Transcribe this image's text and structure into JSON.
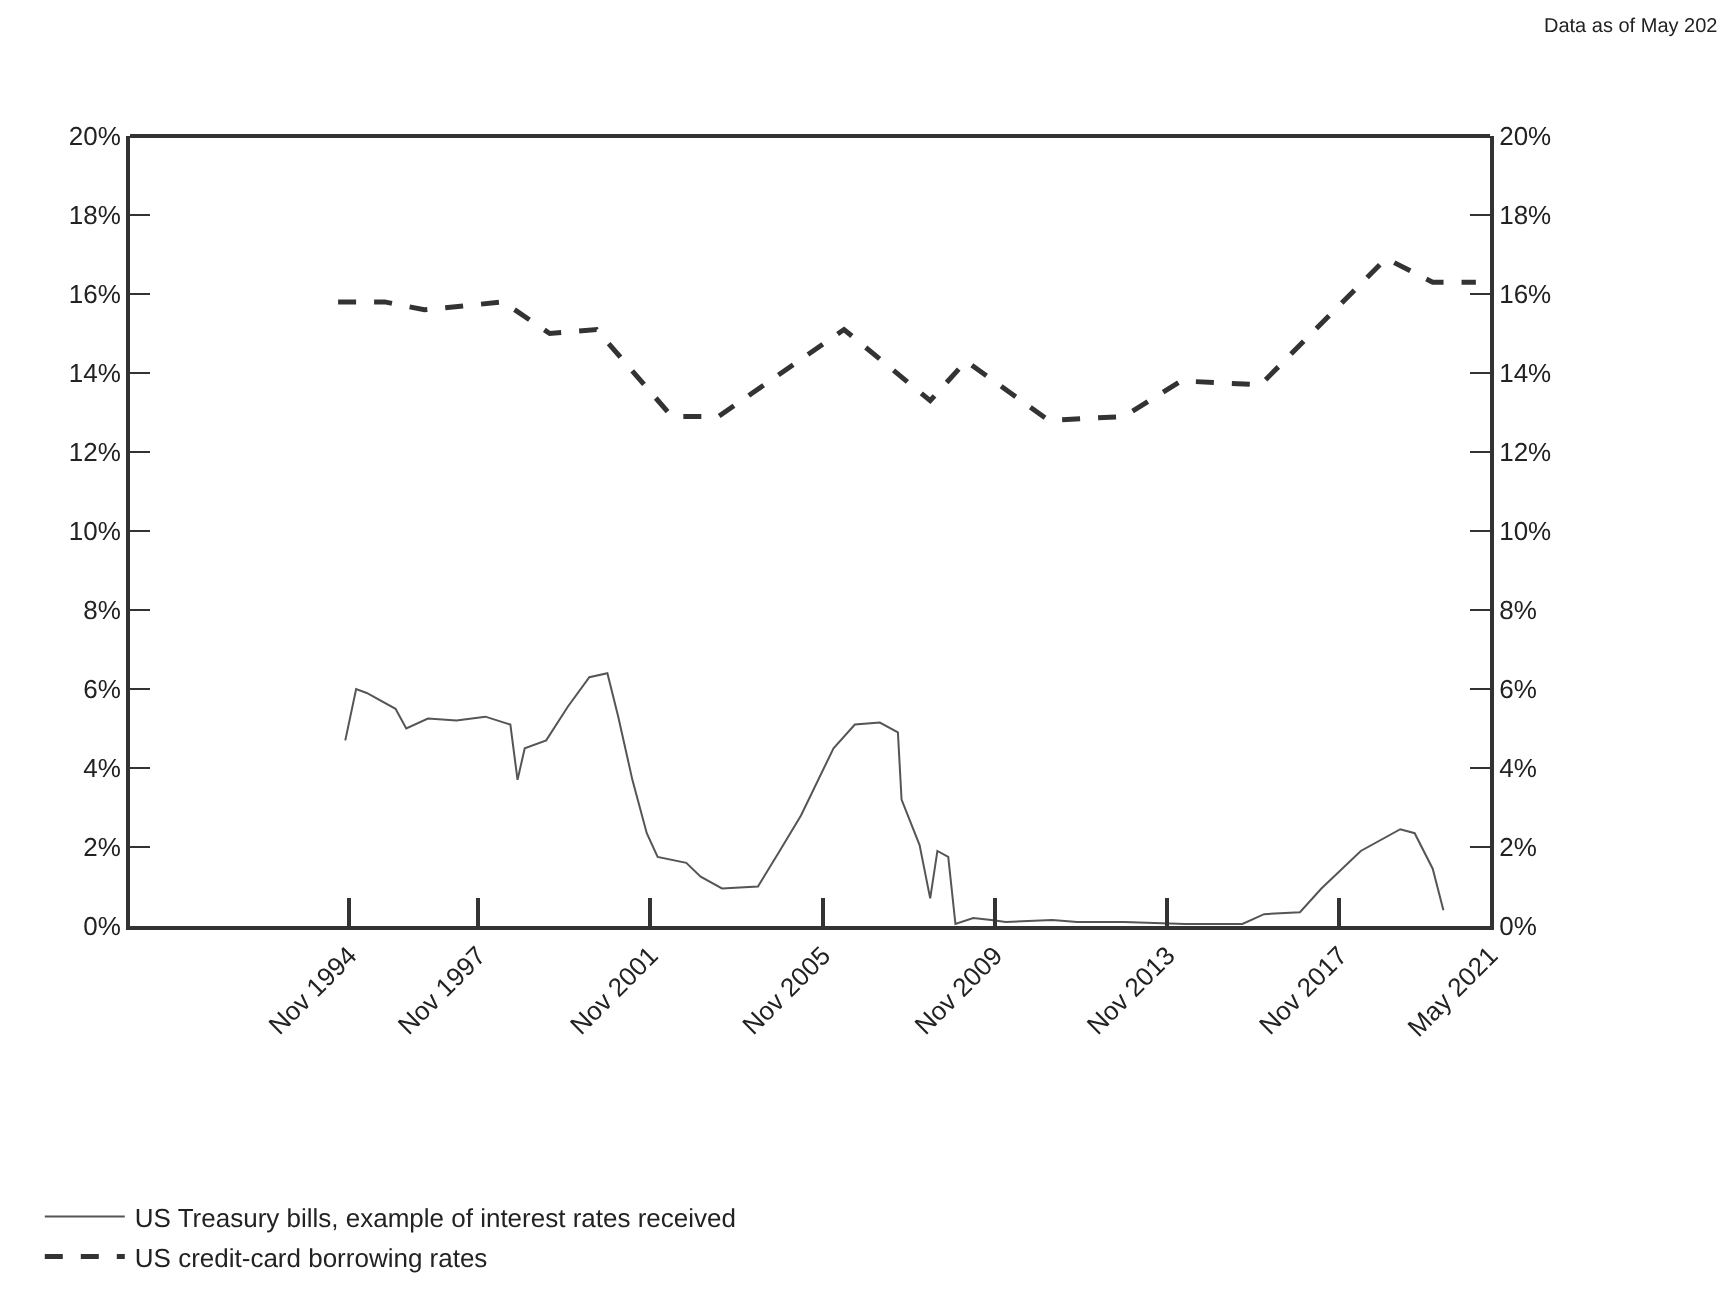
{
  "chart_data": {
    "type": "line",
    "annotations": [
      "Data as of May 202"
    ],
    "xlim": [
      "1989-10",
      "2021-05"
    ],
    "xticks": [
      {
        "value": "1994-11",
        "label": "Nov 1994"
      },
      {
        "value": "1997-11",
        "label": "Nov 1997"
      },
      {
        "value": "2001-11",
        "label": "Nov 2001"
      },
      {
        "value": "2005-11",
        "label": "Nov 2005"
      },
      {
        "value": "2009-11",
        "label": "Nov 2009"
      },
      {
        "value": "2013-11",
        "label": "Nov 2013"
      },
      {
        "value": "2017-11",
        "label": "Nov 2017"
      },
      {
        "value": "2021-05",
        "label": "May 2021"
      }
    ],
    "ylim": [
      0,
      20
    ],
    "yticks": [
      {
        "value": 0,
        "label": "0%"
      },
      {
        "value": 2,
        "label": "2%"
      },
      {
        "value": 4,
        "label": "4%"
      },
      {
        "value": 6,
        "label": "6%"
      },
      {
        "value": 8,
        "label": "8%"
      },
      {
        "value": 10,
        "label": "10%"
      },
      {
        "value": 12,
        "label": "12%"
      },
      {
        "value": 14,
        "label": "14%"
      },
      {
        "value": 16,
        "label": "16%"
      },
      {
        "value": 18,
        "label": "18%"
      },
      {
        "value": 20,
        "label": "20%"
      }
    ],
    "y2lim": [
      0,
      20
    ],
    "y2ticks": [
      {
        "value": 0,
        "label": "0%"
      },
      {
        "value": 2,
        "label": "2%"
      },
      {
        "value": 4,
        "label": "4%"
      },
      {
        "value": 6,
        "label": "6%"
      },
      {
        "value": 8,
        "label": "8%"
      },
      {
        "value": 10,
        "label": "10%"
      },
      {
        "value": 12,
        "label": "12%"
      },
      {
        "value": 14,
        "label": "14%"
      },
      {
        "value": 16,
        "label": "16%"
      },
      {
        "value": 18,
        "label": "18%"
      },
      {
        "value": 20,
        "label": "20%"
      }
    ],
    "legend": "bottom",
    "marker": "none",
    "series": [
      {
        "name": "US Treasury bills, example of interest rates received",
        "color": "#555555",
        "line_style": "solid",
        "x": [
          "1994-10",
          "1995-01",
          "1995-04",
          "1995-12",
          "1996-03",
          "1996-09",
          "1997-05",
          "1998-01",
          "1998-08",
          "1998-10",
          "1998-12",
          "1999-06",
          "1999-12",
          "2000-06",
          "2000-11",
          "2001-02",
          "2001-06",
          "2001-10",
          "2002-01",
          "2002-09",
          "2003-01",
          "2003-07",
          "2004-05",
          "2004-11",
          "2005-05",
          "2006-02",
          "2006-08",
          "2007-03",
          "2007-08",
          "2007-09",
          "2008-02",
          "2008-05",
          "2008-07",
          "2008-10",
          "2008-12",
          "2009-05",
          "2009-10",
          "2010-02",
          "2011-03",
          "2011-10",
          "2012-11",
          "2014-04",
          "2015-08",
          "2016-02",
          "2016-12",
          "2017-06",
          "2018-05",
          "2019-04",
          "2019-08",
          "2020-01",
          "2020-04"
        ],
        "values": [
          4.7,
          6.0,
          5.9,
          5.5,
          5.0,
          5.25,
          5.2,
          5.3,
          5.1,
          3.7,
          4.5,
          4.7,
          5.55,
          6.3,
          6.4,
          5.3,
          3.7,
          2.35,
          1.75,
          1.6,
          1.25,
          0.95,
          1.0,
          1.9,
          2.8,
          4.5,
          5.1,
          5.15,
          4.9,
          3.2,
          2.05,
          0.7,
          1.9,
          1.75,
          0.05,
          0.2,
          0.15,
          0.1,
          0.15,
          0.1,
          0.1,
          0.05,
          0.05,
          0.3,
          0.35,
          0.95,
          1.9,
          2.45,
          2.35,
          1.45,
          0.4
        ]
      },
      {
        "name": "US credit-card borrowing rates",
        "axis": "y2",
        "color": "#333333",
        "line_style": "dashed",
        "x": [
          "1994-08",
          "1995-09",
          "1996-08",
          "1998-06",
          "1999-07",
          "2000-08",
          "2002-05",
          "2003-06",
          "2006-05",
          "2008-05",
          "2009-03",
          "2011-02",
          "2012-11",
          "2014-03",
          "2016-01",
          "2018-12",
          "2020-01",
          "2021-01"
        ],
        "values": [
          15.8,
          15.8,
          15.6,
          15.8,
          15.0,
          15.1,
          12.9,
          12.9,
          15.1,
          13.3,
          14.3,
          12.8,
          12.9,
          13.8,
          13.7,
          16.9,
          16.3,
          16.3
        ]
      }
    ]
  }
}
